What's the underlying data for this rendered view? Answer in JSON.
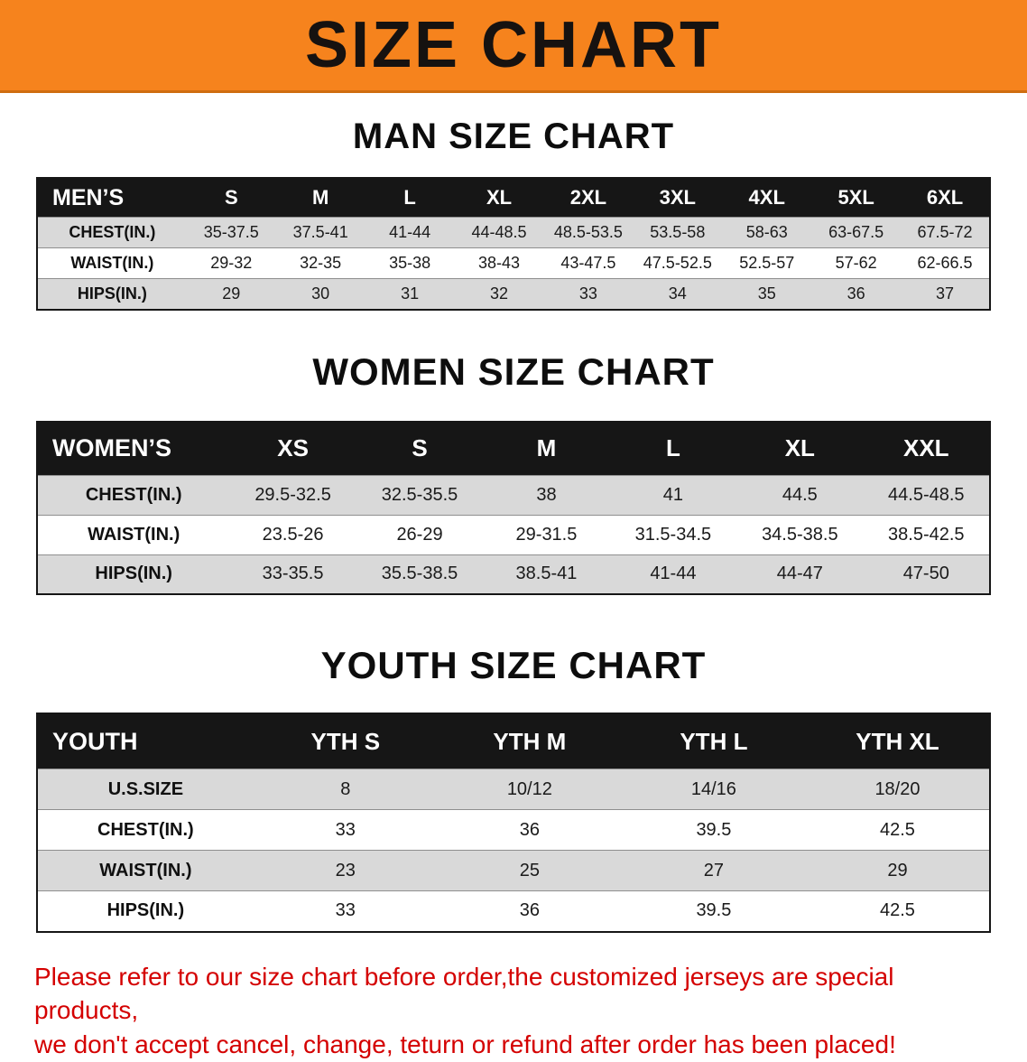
{
  "banner": {
    "title": "SIZE CHART",
    "bg_color": "#f6831d",
    "text_color": "#161210"
  },
  "sections": [
    {
      "heading": "MAN SIZE CHART",
      "table": {
        "header": [
          "MEN’S",
          "S",
          "M",
          "L",
          "XL",
          "2XL",
          "3XL",
          "4XL",
          "5XL",
          "6XL"
        ],
        "rows": [
          [
            "CHEST(IN.)",
            "35-37.5",
            "37.5-41",
            "41-44",
            "44-48.5",
            "48.5-53.5",
            "53.5-58",
            "58-63",
            "63-67.5",
            "67.5-72"
          ],
          [
            "WAIST(IN.)",
            "29-32",
            "32-35",
            "35-38",
            "38-43",
            "43-47.5",
            "47.5-52.5",
            "52.5-57",
            "57-62",
            "62-66.5"
          ],
          [
            "HIPS(IN.)",
            "29",
            "30",
            "31",
            "32",
            "33",
            "34",
            "35",
            "36",
            "37"
          ]
        ]
      }
    },
    {
      "heading": "WOMEN SIZE CHART",
      "table": {
        "header": [
          "WOMEN’S",
          "XS",
          "S",
          "M",
          "L",
          "XL",
          "XXL"
        ],
        "rows": [
          [
            "CHEST(IN.)",
            "29.5-32.5",
            "32.5-35.5",
            "38",
            "41",
            "44.5",
            "44.5-48.5"
          ],
          [
            "WAIST(IN.)",
            "23.5-26",
            "26-29",
            "29-31.5",
            "31.5-34.5",
            "34.5-38.5",
            "38.5-42.5"
          ],
          [
            "HIPS(IN.)",
            "33-35.5",
            "35.5-38.5",
            "38.5-41",
            "41-44",
            "44-47",
            "47-50"
          ]
        ]
      }
    },
    {
      "heading": "YOUTH SIZE CHART",
      "table": {
        "header": [
          "YOUTH",
          "YTH S",
          "YTH M",
          "YTH L",
          "YTH XL"
        ],
        "rows": [
          [
            "U.S.SIZE",
            "8",
            "10/12",
            "14/16",
            "18/20"
          ],
          [
            "CHEST(IN.)",
            "33",
            "36",
            "39.5",
            "42.5"
          ],
          [
            "WAIST(IN.)",
            "23",
            "25",
            "27",
            "29"
          ],
          [
            "HIPS(IN.)",
            "33",
            "36",
            "39.5",
            "42.5"
          ]
        ]
      }
    }
  ],
  "footer": {
    "lines": [
      "Please refer to our size chart before order,the customized jerseys are special products,",
      "we don't accept cancel, change, teturn or refund after order has been placed!"
    ]
  },
  "colors": {
    "banner_bg": "#f6831d",
    "header_row_bg": "#161616",
    "header_row_text": "#ffffff",
    "shaded_row_bg": "#d9d9d9",
    "plain_row_bg": "#ffffff",
    "footer_text": "#d40000"
  }
}
